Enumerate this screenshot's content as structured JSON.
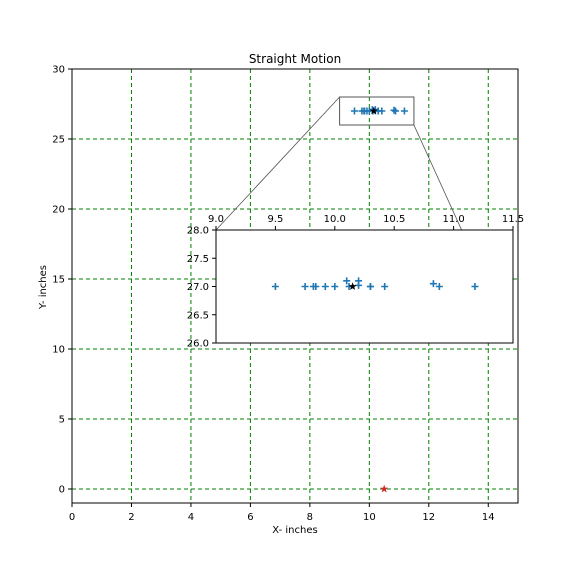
{
  "chart_data": [
    {
      "type": "scatter",
      "title": "Straight Motion",
      "xlabel": "X- inches",
      "ylabel": "Y- inches",
      "xlim": [
        0,
        15
      ],
      "ylim": [
        -1,
        30
      ],
      "xticks": [
        0,
        2,
        4,
        6,
        8,
        10,
        12,
        14
      ],
      "xtick_labels": [
        "0",
        "2",
        "4",
        "6",
        "8",
        "10",
        "12",
        "14"
      ],
      "yticks": [
        0,
        5,
        10,
        15,
        20,
        25,
        30
      ],
      "ytick_labels": [
        "0",
        "5",
        "10",
        "15",
        "20",
        "25",
        "30"
      ],
      "grid": true,
      "grid_color": "#008000",
      "grid_style": "dashed",
      "series": [
        {
          "marker": "plus",
          "color": "#1f77b4",
          "points": [
            [
              9.5,
              27.0
            ],
            [
              9.75,
              27.0
            ],
            [
              9.82,
              27.0
            ],
            [
              9.84,
              27.0
            ],
            [
              9.92,
              27.0
            ],
            [
              10.0,
              27.0
            ],
            [
              10.1,
              27.1
            ],
            [
              10.12,
              27.0
            ],
            [
              10.2,
              27.02
            ],
            [
              10.2,
              27.1
            ],
            [
              10.3,
              27.0
            ],
            [
              10.3,
              27.0
            ],
            [
              10.42,
              27.0
            ],
            [
              10.83,
              27.05
            ],
            [
              10.88,
              27.0
            ],
            [
              11.18,
              27.0
            ]
          ]
        },
        {
          "marker": "star",
          "color": "#000000",
          "points": [
            [
              10.15,
              27.0
            ]
          ]
        },
        {
          "marker": "star",
          "color": "#d62728",
          "points": [
            [
              10.5,
              0.0
            ]
          ]
        }
      ],
      "zoom_box": {
        "xlim": [
          9.0,
          11.5
        ],
        "ylim": [
          26.0,
          28.0
        ]
      }
    },
    {
      "type": "scatter",
      "title": "",
      "xlim": [
        9.0,
        11.5
      ],
      "ylim": [
        26.0,
        28.0
      ],
      "xticks": [
        9.0,
        9.5,
        10.0,
        10.5,
        11.0,
        11.5
      ],
      "xtick_labels": [
        "9.0",
        "9.5",
        "10.0",
        "10.5",
        "11.0",
        "11.5"
      ],
      "yticks": [
        26.0,
        26.5,
        27.0,
        27.5,
        28.0
      ],
      "ytick_labels": [
        "26.0",
        "26.5",
        "27.0",
        "27.5",
        "28.0"
      ],
      "xaxis_position": "top",
      "grid": false,
      "series": [
        {
          "marker": "plus",
          "color": "#1f77b4",
          "points": [
            [
              9.5,
              27.0
            ],
            [
              9.75,
              27.0
            ],
            [
              9.82,
              27.0
            ],
            [
              9.84,
              27.0
            ],
            [
              9.92,
              27.0
            ],
            [
              10.0,
              27.0
            ],
            [
              10.1,
              27.1
            ],
            [
              10.12,
              27.0
            ],
            [
              10.2,
              27.02
            ],
            [
              10.2,
              27.1
            ],
            [
              10.3,
              27.0
            ],
            [
              10.3,
              27.0
            ],
            [
              10.42,
              27.0
            ],
            [
              10.83,
              27.05
            ],
            [
              10.88,
              27.0
            ],
            [
              11.18,
              27.0
            ]
          ]
        },
        {
          "marker": "star",
          "color": "#000000",
          "points": [
            [
              10.15,
              27.0
            ]
          ]
        }
      ]
    }
  ]
}
